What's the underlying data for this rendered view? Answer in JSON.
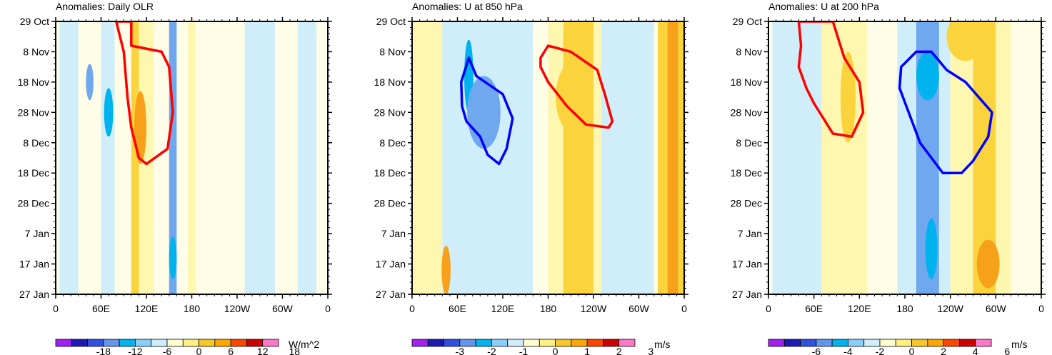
{
  "chart_data": [
    {
      "type": "heatmap",
      "title": "Anomalies: Daily OLR",
      "y_ticks": [
        "29 Oct",
        "8 Nov",
        "18 Nov",
        "28 Nov",
        "8 Dec",
        "18 Dec",
        "28 Dec",
        "7 Jan",
        "17 Jan",
        "27 Jan"
      ],
      "x_ticks": [
        "0",
        "60E",
        "120E",
        "180",
        "120W",
        "60W",
        "0"
      ],
      "xlim": [
        0,
        360
      ],
      "ylim_days": [
        0,
        90
      ],
      "colorbar": {
        "labels": [
          "-18",
          "-12",
          "-6",
          "0",
          "6",
          "12",
          "18"
        ],
        "unit": "W/m^2"
      },
      "bands": [
        {
          "lon": [
            5,
            30
          ],
          "level": -1
        },
        {
          "lon": [
            60,
            78
          ],
          "level": -1
        },
        {
          "lon": [
            100,
            110
          ],
          "level": 2
        },
        {
          "lon": [
            110,
            130
          ],
          "level": 1
        },
        {
          "lon": [
            150,
            160
          ],
          "level": -2
        },
        {
          "lon": [
            175,
            185
          ],
          "level": 1
        },
        {
          "lon": [
            250,
            290
          ],
          "level": -1
        },
        {
          "lon": [
            320,
            345
          ],
          "level": -1
        }
      ],
      "blobs": [
        {
          "lon": 70,
          "day": 30,
          "rlon": 6,
          "rday": 8,
          "level": -3
        },
        {
          "lon": 112,
          "day": 35,
          "rlon": 8,
          "rday": 12,
          "level": 3
        },
        {
          "lon": 155,
          "day": 78,
          "rlon": 5,
          "rday": 7,
          "level": -3
        },
        {
          "lon": 45,
          "day": 20,
          "rlon": 5,
          "rday": 6,
          "level": -2
        }
      ],
      "contours": [
        {
          "color": "#ff0000",
          "points": [
            [
              80,
              0
            ],
            [
              90,
              10
            ],
            [
              95,
              25
            ],
            [
              100,
              35
            ],
            [
              110,
              45
            ],
            [
              120,
              47
            ],
            [
              148,
              42
            ],
            [
              155,
              30
            ],
            [
              150,
              15
            ],
            [
              140,
              10
            ],
            [
              100,
              8
            ],
            [
              100,
              0
            ]
          ]
        }
      ]
    },
    {
      "type": "heatmap",
      "title": "Anomalies: U at 850 hPa",
      "y_ticks": [
        "29 Oct",
        "8 Nov",
        "18 Nov",
        "28 Nov",
        "8 Dec",
        "18 Dec",
        "28 Dec",
        "7 Jan",
        "17 Jan",
        "27 Jan"
      ],
      "x_ticks": [
        "0",
        "60E",
        "120E",
        "180",
        "120W",
        "60W",
        "0"
      ],
      "xlim": [
        0,
        360
      ],
      "ylim_days": [
        0,
        90
      ],
      "colorbar": {
        "labels": [
          "-3",
          "-2",
          "-1",
          "0",
          "1",
          "2",
          "3"
        ],
        "unit": "m/s"
      },
      "bands": [
        {
          "lon": [
            0,
            40
          ],
          "level": 1
        },
        {
          "lon": [
            40,
            160
          ],
          "level": -1
        },
        {
          "lon": [
            180,
            250
          ],
          "level": 1
        },
        {
          "lon": [
            200,
            240
          ],
          "level": 2
        },
        {
          "lon": [
            250,
            320
          ],
          "level": -1
        },
        {
          "lon": [
            325,
            360
          ],
          "level": 2
        },
        {
          "lon": [
            338,
            352
          ],
          "level": 3
        }
      ],
      "blobs": [
        {
          "lon": 75,
          "day": 18,
          "rlon": 6,
          "rday": 12,
          "level": -3
        },
        {
          "lon": 95,
          "day": 30,
          "rlon": 22,
          "rday": 12,
          "level": -2
        },
        {
          "lon": 215,
          "day": 25,
          "rlon": 25,
          "rday": 12,
          "level": 2
        },
        {
          "lon": 45,
          "day": 82,
          "rlon": 6,
          "rday": 8,
          "level": 3
        }
      ],
      "contours": [
        {
          "color": "#0000ff",
          "points": [
            [
              65,
              20
            ],
            [
              75,
              12
            ],
            [
              85,
              18
            ],
            [
              120,
              24
            ],
            [
              133,
              32
            ],
            [
              125,
              42
            ],
            [
              115,
              47
            ],
            [
              100,
              44
            ],
            [
              90,
              38
            ],
            [
              72,
              33
            ],
            [
              66,
              28
            ]
          ]
        },
        {
          "color": "#ff0000",
          "points": [
            [
              170,
              12
            ],
            [
              180,
              8
            ],
            [
              210,
              10
            ],
            [
              245,
              16
            ],
            [
              255,
              24
            ],
            [
              265,
              33
            ],
            [
              260,
              35
            ],
            [
              230,
              34
            ],
            [
              205,
              28
            ],
            [
              180,
              20
            ],
            [
              170,
              15
            ]
          ]
        }
      ]
    },
    {
      "type": "heatmap",
      "title": "Anomalies: U at 200 hPa",
      "y_ticks": [
        "29 Oct",
        "8 Nov",
        "18 Nov",
        "28 Nov",
        "8 Dec",
        "18 Dec",
        "28 Dec",
        "7 Jan",
        "17 Jan",
        "27 Jan"
      ],
      "x_ticks": [
        "0",
        "60E",
        "120E",
        "180",
        "120W",
        "60W",
        "0"
      ],
      "xlim": [
        0,
        360
      ],
      "ylim_days": [
        0,
        90
      ],
      "colorbar": {
        "labels": [
          "-6",
          "-4",
          "-2",
          "0",
          "2",
          "4",
          "6"
        ],
        "unit": "m/s"
      },
      "bands": [
        {
          "lon": [
            5,
            70
          ],
          "level": -1
        },
        {
          "lon": [
            70,
            95
          ],
          "level": 1
        },
        {
          "lon": [
            95,
            130
          ],
          "level": 1
        },
        {
          "lon": [
            170,
            240
          ],
          "level": -1
        },
        {
          "lon": [
            195,
            225
          ],
          "level": -2
        },
        {
          "lon": [
            240,
            320
          ],
          "level": 1
        },
        {
          "lon": [
            270,
            300
          ],
          "level": 2
        }
      ],
      "blobs": [
        {
          "lon": 105,
          "day": 25,
          "rlon": 10,
          "rday": 15,
          "level": 2
        },
        {
          "lon": 210,
          "day": 18,
          "rlon": 15,
          "rday": 8,
          "level": -3
        },
        {
          "lon": 215,
          "day": 75,
          "rlon": 8,
          "rday": 10,
          "level": -3
        },
        {
          "lon": 290,
          "day": 80,
          "rlon": 15,
          "rday": 8,
          "level": 3
        },
        {
          "lon": 260,
          "day": 5,
          "rlon": 25,
          "rday": 8,
          "level": 2
        }
      ],
      "contours": [
        {
          "color": "#ff0000",
          "points": [
            [
              40,
              0
            ],
            [
              43,
              8
            ],
            [
              40,
              15
            ],
            [
              50,
              22
            ],
            [
              60,
              27
            ],
            [
              85,
              37
            ],
            [
              110,
              38
            ],
            [
              125,
              30
            ],
            [
              120,
              20
            ],
            [
              100,
              12
            ],
            [
              85,
              0
            ]
          ]
        },
        {
          "color": "#0000ff",
          "points": [
            [
              175,
              15
            ],
            [
              195,
              10
            ],
            [
              215,
              10
            ],
            [
              235,
              16
            ],
            [
              260,
              20
            ],
            [
              295,
              30
            ],
            [
              290,
              38
            ],
            [
              270,
              46
            ],
            [
              255,
              50
            ],
            [
              230,
              50
            ],
            [
              200,
              40
            ],
            [
              185,
              30
            ],
            [
              173,
              22
            ]
          ]
        }
      ]
    }
  ]
}
